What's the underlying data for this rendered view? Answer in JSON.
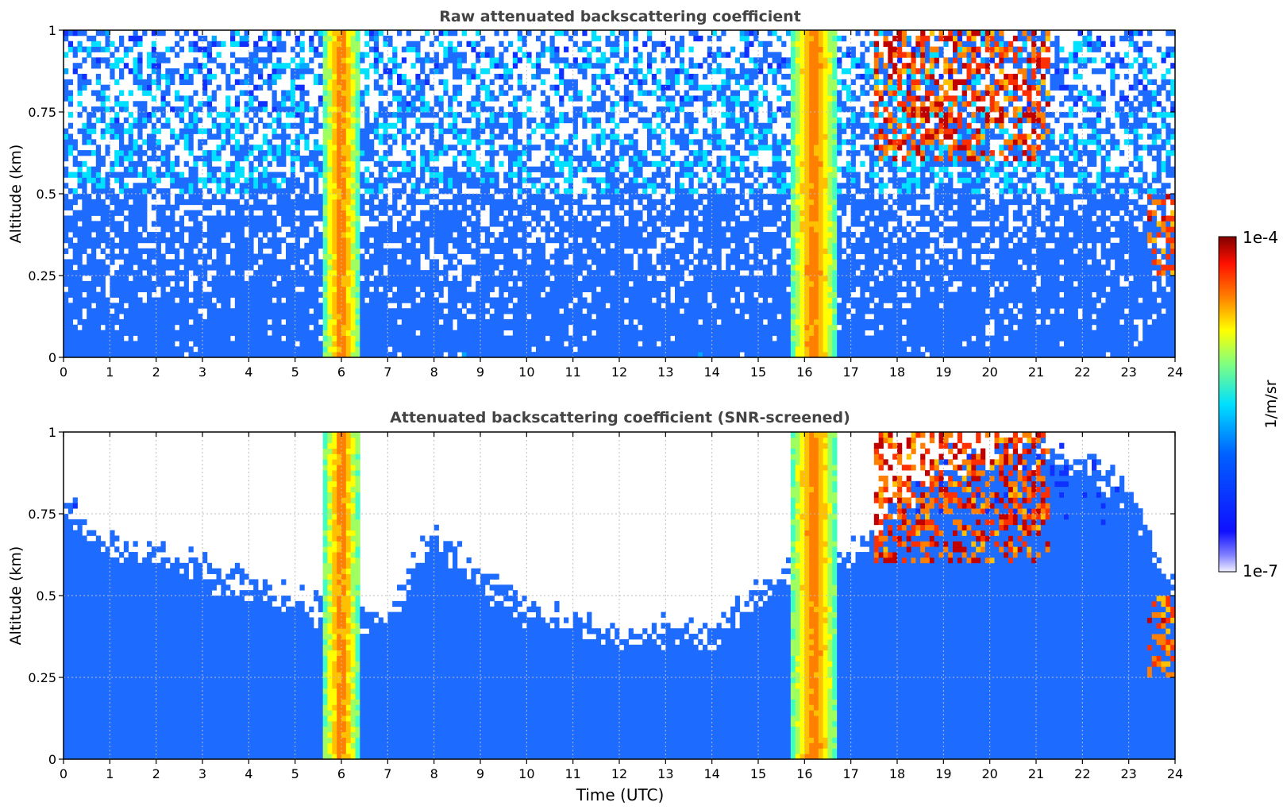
{
  "colors": {
    "palette": [
      "#000080",
      "#0000d0",
      "#1030ff",
      "#1e6cff",
      "#00a8ff",
      "#00e0ff",
      "#40ffc0",
      "#a0ff60",
      "#ffff00",
      "#ffc000",
      "#ff8000",
      "#ff3000",
      "#c00000",
      "#800000"
    ],
    "grid": "#bdbdbd",
    "title": "#444444",
    "no_data": "#ffffff"
  },
  "chart_data": [
    {
      "type": "heatmap",
      "title": "Raw attenuated backscattering coefficient",
      "xlabel": "",
      "ylabel": "Altitude (km)",
      "xlim": [
        0,
        24
      ],
      "ylim": [
        0,
        1
      ],
      "xticks": [
        "0",
        "1",
        "2",
        "3",
        "4",
        "5",
        "6",
        "7",
        "8",
        "9",
        "10",
        "11",
        "12",
        "13",
        "14",
        "15",
        "16",
        "17",
        "18",
        "19",
        "20",
        "21",
        "22",
        "23",
        "24"
      ],
      "yticks": [
        "0",
        "0.25",
        "0.5",
        "0.75",
        "1"
      ],
      "grid": true,
      "screened": false,
      "features": [
        {
          "kind": "precip_column",
          "x_start": 5.6,
          "x_end": 6.4,
          "y_top": 1.0,
          "level": 0.8
        },
        {
          "kind": "precip_column",
          "x_start": 15.7,
          "x_end": 16.7,
          "y_top": 1.0,
          "level": 0.8
        },
        {
          "kind": "cloud",
          "x_start": 17.5,
          "x_end": 21.3,
          "y_low": 0.6,
          "y_high": 1.0,
          "level": 0.95
        },
        {
          "kind": "cloud",
          "x_start": 23.4,
          "x_end": 24.0,
          "y_low": 0.25,
          "y_high": 0.5,
          "level": 0.9
        }
      ]
    },
    {
      "type": "heatmap",
      "title": "Attenuated backscattering coefficient (SNR-screened)",
      "xlabel": "Time (UTC)",
      "ylabel": "Altitude (km)",
      "xlim": [
        0,
        24
      ],
      "ylim": [
        0,
        1
      ],
      "xticks": [
        "0",
        "1",
        "2",
        "3",
        "4",
        "5",
        "6",
        "7",
        "8",
        "9",
        "10",
        "11",
        "12",
        "13",
        "14",
        "15",
        "16",
        "17",
        "18",
        "19",
        "20",
        "21",
        "22",
        "23",
        "24"
      ],
      "yticks": [
        "0",
        "0.25",
        "0.5",
        "0.75",
        "1"
      ],
      "grid": true,
      "screened": true,
      "boundary": [
        [
          0,
          0.78
        ],
        [
          1,
          0.65
        ],
        [
          2,
          0.62
        ],
        [
          3,
          0.58
        ],
        [
          4,
          0.52
        ],
        [
          5,
          0.48
        ],
        [
          6,
          0.45
        ],
        [
          7,
          0.42
        ],
        [
          8,
          0.7
        ],
        [
          9,
          0.55
        ],
        [
          10,
          0.45
        ],
        [
          11,
          0.42
        ],
        [
          12,
          0.36
        ],
        [
          13,
          0.4
        ],
        [
          14,
          0.38
        ],
        [
          15,
          0.5
        ],
        [
          16,
          0.6
        ],
        [
          17,
          0.62
        ],
        [
          18,
          0.78
        ],
        [
          19,
          0.9
        ],
        [
          20,
          0.92
        ],
        [
          21,
          0.95
        ],
        [
          22,
          0.9
        ],
        [
          23,
          0.82
        ],
        [
          24,
          0.5
        ]
      ],
      "features": [
        {
          "kind": "precip_column",
          "x_start": 5.6,
          "x_end": 6.4,
          "y_top": 1.0,
          "level": 0.8
        },
        {
          "kind": "precip_column",
          "x_start": 15.7,
          "x_end": 16.7,
          "y_top": 1.0,
          "level": 0.8
        },
        {
          "kind": "cloud",
          "x_start": 17.5,
          "x_end": 21.3,
          "y_low": 0.6,
          "y_high": 1.0,
          "level": 0.95
        },
        {
          "kind": "cloud",
          "x_start": 23.4,
          "x_end": 24.0,
          "y_low": 0.25,
          "y_high": 0.5,
          "level": 0.9
        }
      ]
    }
  ],
  "colorbar": {
    "max_label": "1e-4",
    "min_label": "1e-7",
    "unit_label": "1/m/sr"
  }
}
